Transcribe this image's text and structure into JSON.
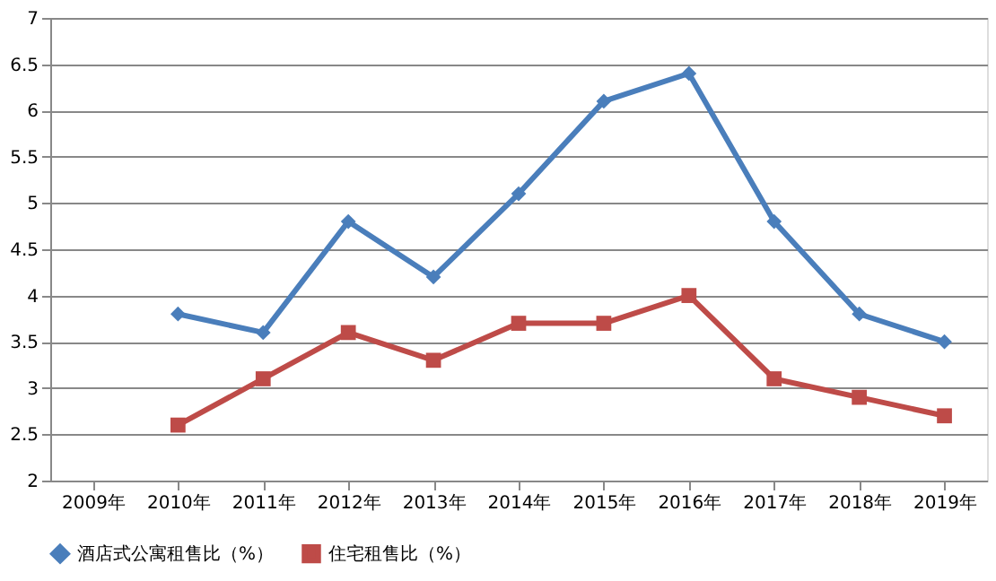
{
  "chart_data": {
    "type": "line",
    "categories": [
      "2009年",
      "2010年",
      "2011年",
      "2012年",
      "2013年",
      "2014年",
      "2015年",
      "2016年",
      "2017年",
      "2018年",
      "2019年"
    ],
    "series": [
      {
        "name": "酒店式公寓租售比（%）",
        "color": "#4a7ebb",
        "marker": "diamond",
        "values": [
          null,
          3.8,
          3.6,
          4.8,
          4.2,
          5.1,
          6.1,
          6.4,
          4.8,
          3.8,
          3.5
        ]
      },
      {
        "name": "住宅租售比（%）",
        "color": "#be4b48",
        "marker": "square",
        "values": [
          null,
          2.6,
          3.1,
          3.6,
          3.3,
          3.7,
          3.7,
          4.0,
          3.1,
          2.9,
          2.7
        ]
      }
    ],
    "ylim": [
      2,
      7
    ],
    "yticks": [
      2,
      2.5,
      3,
      3.5,
      4,
      4.5,
      5,
      5.5,
      6,
      6.5,
      7
    ],
    "grid": "y",
    "legend": "bottom",
    "line_style": "solid"
  }
}
